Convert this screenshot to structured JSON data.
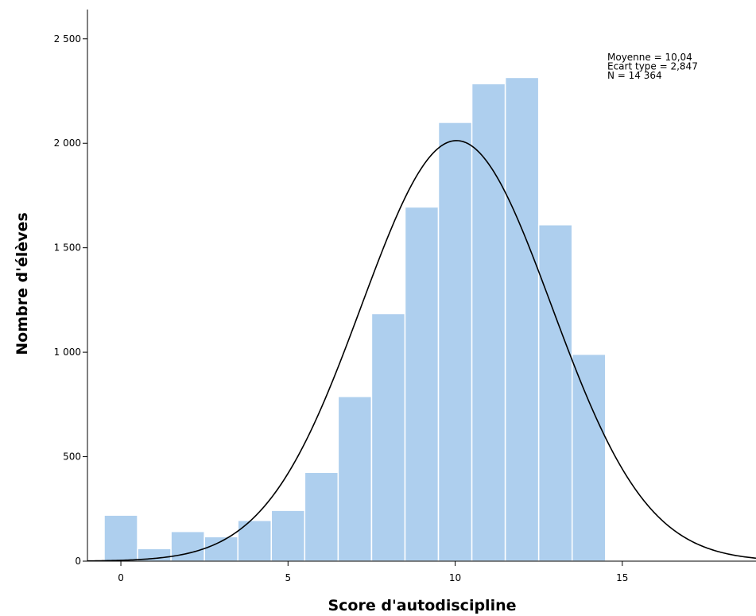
{
  "chart_data": {
    "type": "bar",
    "title": "",
    "xlabel": "Score d'autodiscipline",
    "ylabel": "Nombre d'élèves",
    "bins": [
      {
        "x": 0,
        "value": 220
      },
      {
        "x": 1,
        "value": 60
      },
      {
        "x": 2,
        "value": 142
      },
      {
        "x": 3,
        "value": 117
      },
      {
        "x": 4,
        "value": 195
      },
      {
        "x": 5,
        "value": 243
      },
      {
        "x": 6,
        "value": 425
      },
      {
        "x": 7,
        "value": 788
      },
      {
        "x": 8,
        "value": 1185
      },
      {
        "x": 9,
        "value": 1695
      },
      {
        "x": 10,
        "value": 2100
      },
      {
        "x": 11,
        "value": 2285
      },
      {
        "x": 12,
        "value": 2315
      },
      {
        "x": 13,
        "value": 1610
      },
      {
        "x": 14,
        "value": 990
      }
    ],
    "bar_color": "#aecfee",
    "xlim": [
      -1,
      19
    ],
    "ylim": [
      0,
      2640
    ],
    "x_ticks": [
      {
        "value": 0,
        "label": "0"
      },
      {
        "value": 5,
        "label": "5"
      },
      {
        "value": 10,
        "label": "10"
      },
      {
        "value": 15,
        "label": "15"
      }
    ],
    "y_ticks": [
      {
        "value": 0,
        "label": "0"
      },
      {
        "value": 500,
        "label": "500"
      },
      {
        "value": 1000,
        "label": "1 000"
      },
      {
        "value": 1500,
        "label": "1 500"
      },
      {
        "value": 2000,
        "label": "2 000"
      },
      {
        "value": 2500,
        "label": "2 500"
      }
    ],
    "normal_curve": {
      "mean": 10.04,
      "sd": 2.847,
      "n": 14364,
      "bin_width": 1
    },
    "stats": [
      "Moyenne = 10,04",
      "Ecart type = 2,847",
      "N = 14 364"
    ]
  }
}
